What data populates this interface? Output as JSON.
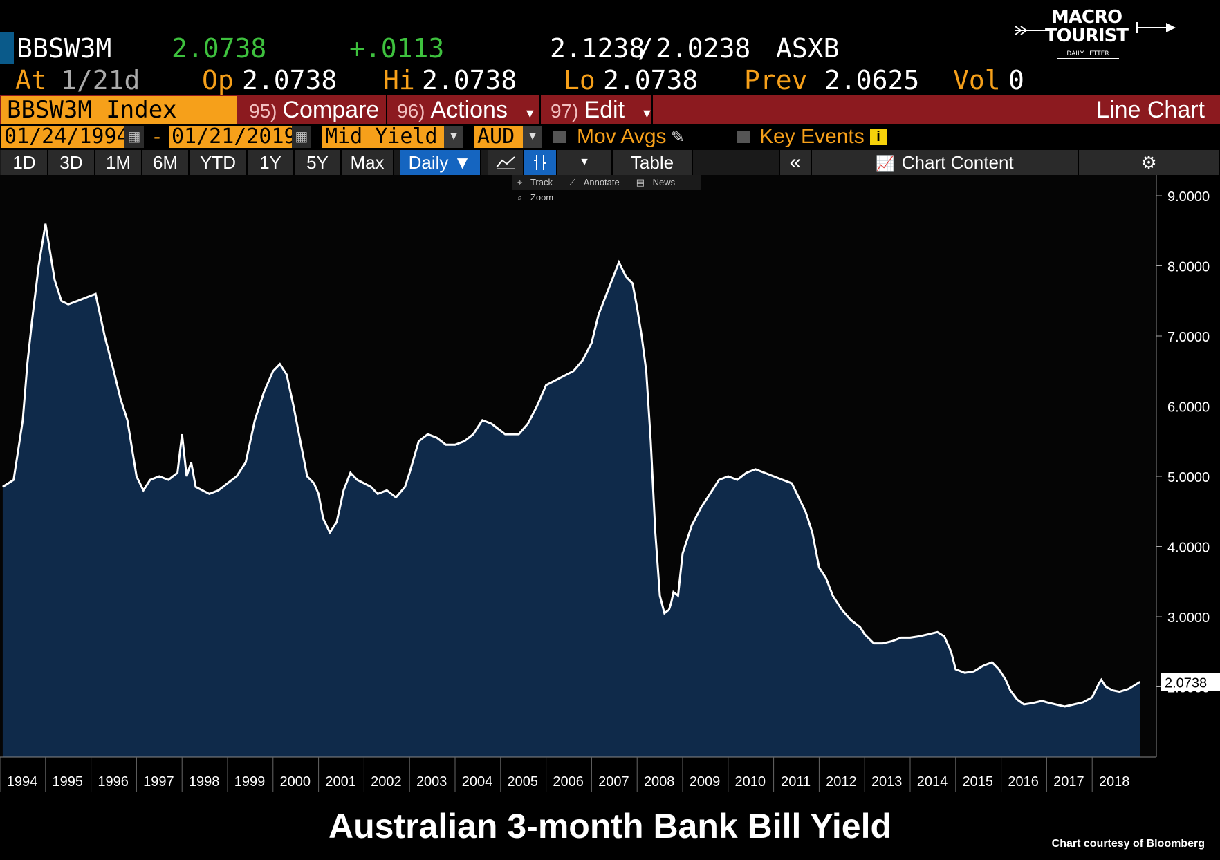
{
  "quote": {
    "ticker": "BBSW3M",
    "last": "2.0738",
    "change": "+.0113",
    "bid_ask": "2.1238",
    "bid_ask_sep": "/",
    "bid_ask2": "2.0238",
    "exchange": "ASXB",
    "at_label": "At",
    "at_value": "1/21d",
    "open_label": "Op",
    "open": "2.0738",
    "high_label": "Hi",
    "high": "2.0738",
    "low_label": "Lo",
    "low": "2.0738",
    "prev_label": "Prev",
    "prev": "2.0625",
    "vol_label": "Vol",
    "vol": "0"
  },
  "brand": {
    "line1": "MACRO",
    "line2": "TOURIST",
    "sub": "DAILY LETTER"
  },
  "toolbar": {
    "ticker_box": "BBSW3M Index",
    "compare_num": "95)",
    "compare": "Compare",
    "actions_num": "96)",
    "actions": "Actions",
    "edit_num": "97)",
    "edit": "Edit",
    "chart_type": "Line Chart"
  },
  "controls": {
    "start_date": "01/24/1994",
    "dash": "-",
    "end_date": "01/21/2019",
    "field": "Mid Yield",
    "currency": "AUD",
    "mov_avgs": "Mov Avgs",
    "key_events": "Key Events"
  },
  "periods": [
    "1D",
    "3D",
    "1M",
    "6M",
    "YTD",
    "1Y",
    "5Y",
    "Max"
  ],
  "period_controls": {
    "frequency": "Daily ▼",
    "table": "Table",
    "chart_content": "Chart Content"
  },
  "mini_toolbar": [
    "Track",
    "Annotate",
    "News",
    "Zoom"
  ],
  "colors": {
    "accent": "#f6a01a",
    "toolbar": "#8c1a1f",
    "active": "#1565c0",
    "fill": "#0f2a4a",
    "line": "#ffffff"
  },
  "chart_data": {
    "type": "area",
    "title": "Australian 3-month Bank Bill Yield",
    "ylim": [
      1.0,
      9.3
    ],
    "yticks": [
      "2.0000",
      "3.0000",
      "4.0000",
      "5.0000",
      "6.0000",
      "7.0000",
      "8.0000",
      "9.0000"
    ],
    "xticks": [
      "1994",
      "1995",
      "1996",
      "1997",
      "1998",
      "1999",
      "2000",
      "2001",
      "2002",
      "2003",
      "2004",
      "2005",
      "2006",
      "2007",
      "2008",
      "2009",
      "2010",
      "2011",
      "2012",
      "2013",
      "2014",
      "2015",
      "2016",
      "2017",
      "2018"
    ],
    "last_value_label": "2.0738",
    "x": [
      1994.06,
      1994.3,
      1994.5,
      1994.6,
      1994.7,
      1994.85,
      1995.0,
      1995.1,
      1995.2,
      1995.35,
      1995.5,
      1995.7,
      1995.9,
      1996.1,
      1996.3,
      1996.5,
      1996.65,
      1996.8,
      1997.0,
      1997.15,
      1997.3,
      1997.5,
      1997.7,
      1997.9,
      1998.0,
      1998.1,
      1998.2,
      1998.3,
      1998.45,
      1998.6,
      1998.8,
      1999.0,
      1999.2,
      1999.4,
      1999.6,
      1999.8,
      2000.0,
      2000.15,
      2000.3,
      2000.45,
      2000.6,
      2000.75,
      2000.9,
      2001.0,
      2001.1,
      2001.25,
      2001.4,
      2001.55,
      2001.7,
      2001.85,
      2002.0,
      2002.15,
      2002.3,
      2002.5,
      2002.7,
      2002.9,
      2003.0,
      2003.2,
      2003.4,
      2003.6,
      2003.8,
      2004.0,
      2004.2,
      2004.4,
      2004.6,
      2004.8,
      2005.0,
      2005.1,
      2005.2,
      2005.4,
      2005.6,
      2005.8,
      2006.0,
      2006.15,
      2006.3,
      2006.45,
      2006.6,
      2006.8,
      2007.0,
      2007.15,
      2007.3,
      2007.45,
      2007.6,
      2007.75,
      2007.9,
      2008.0,
      2008.1,
      2008.2,
      2008.3,
      2008.4,
      2008.5,
      2008.6,
      2008.7,
      2008.75,
      2008.8,
      2008.9,
      2009.0,
      2009.2,
      2009.4,
      2009.6,
      2009.8,
      2010.0,
      2010.2,
      2010.4,
      2010.6,
      2010.8,
      2011.0,
      2011.2,
      2011.4,
      2011.55,
      2011.7,
      2011.85,
      2012.0,
      2012.15,
      2012.3,
      2012.5,
      2012.7,
      2012.9,
      2013.0,
      2013.2,
      2013.4,
      2013.6,
      2013.8,
      2014.0,
      2014.2,
      2014.4,
      2014.6,
      2014.75,
      2014.9,
      2015.0,
      2015.2,
      2015.4,
      2015.6,
      2015.8,
      2015.95,
      2016.1,
      2016.2,
      2016.35,
      2016.5,
      2016.7,
      2016.9,
      2017.0,
      2017.2,
      2017.4,
      2017.6,
      2017.8,
      2018.0,
      2018.15,
      2018.2,
      2018.3,
      2018.45,
      2018.6,
      2018.8,
      2018.95,
      2019.05
    ],
    "y": [
      4.85,
      4.95,
      5.8,
      6.6,
      7.2,
      8.0,
      8.6,
      8.2,
      7.8,
      7.5,
      7.45,
      7.5,
      7.55,
      7.6,
      7.0,
      6.5,
      6.1,
      5.8,
      5.0,
      4.8,
      4.95,
      5.0,
      4.95,
      5.05,
      5.6,
      5.0,
      5.2,
      4.85,
      4.8,
      4.75,
      4.8,
      4.9,
      5.0,
      5.2,
      5.8,
      6.2,
      6.5,
      6.6,
      6.45,
      6.0,
      5.5,
      5.0,
      4.9,
      4.75,
      4.4,
      4.2,
      4.35,
      4.8,
      5.05,
      4.95,
      4.9,
      4.85,
      4.75,
      4.8,
      4.7,
      4.85,
      5.05,
      5.5,
      5.6,
      5.55,
      5.45,
      5.45,
      5.5,
      5.6,
      5.8,
      5.75,
      5.65,
      5.6,
      5.6,
      5.6,
      5.75,
      6.0,
      6.3,
      6.35,
      6.4,
      6.45,
      6.5,
      6.65,
      6.9,
      7.3,
      7.55,
      7.8,
      8.05,
      7.85,
      7.75,
      7.4,
      7.0,
      6.5,
      5.5,
      4.2,
      3.3,
      3.05,
      3.1,
      3.2,
      3.35,
      3.3,
      3.9,
      4.3,
      4.55,
      4.75,
      4.95,
      5.0,
      4.95,
      5.05,
      5.1,
      5.05,
      5.0,
      4.95,
      4.9,
      4.7,
      4.5,
      4.2,
      3.7,
      3.55,
      3.3,
      3.1,
      2.95,
      2.85,
      2.75,
      2.62,
      2.62,
      2.65,
      2.7,
      2.7,
      2.72,
      2.75,
      2.78,
      2.72,
      2.5,
      2.25,
      2.2,
      2.22,
      2.3,
      2.35,
      2.25,
      2.1,
      1.95,
      1.82,
      1.75,
      1.77,
      1.8,
      1.78,
      1.75,
      1.72,
      1.75,
      1.78,
      1.85,
      2.05,
      2.1,
      2.0,
      1.95,
      1.93,
      1.97,
      2.03,
      2.07
    ]
  }
}
